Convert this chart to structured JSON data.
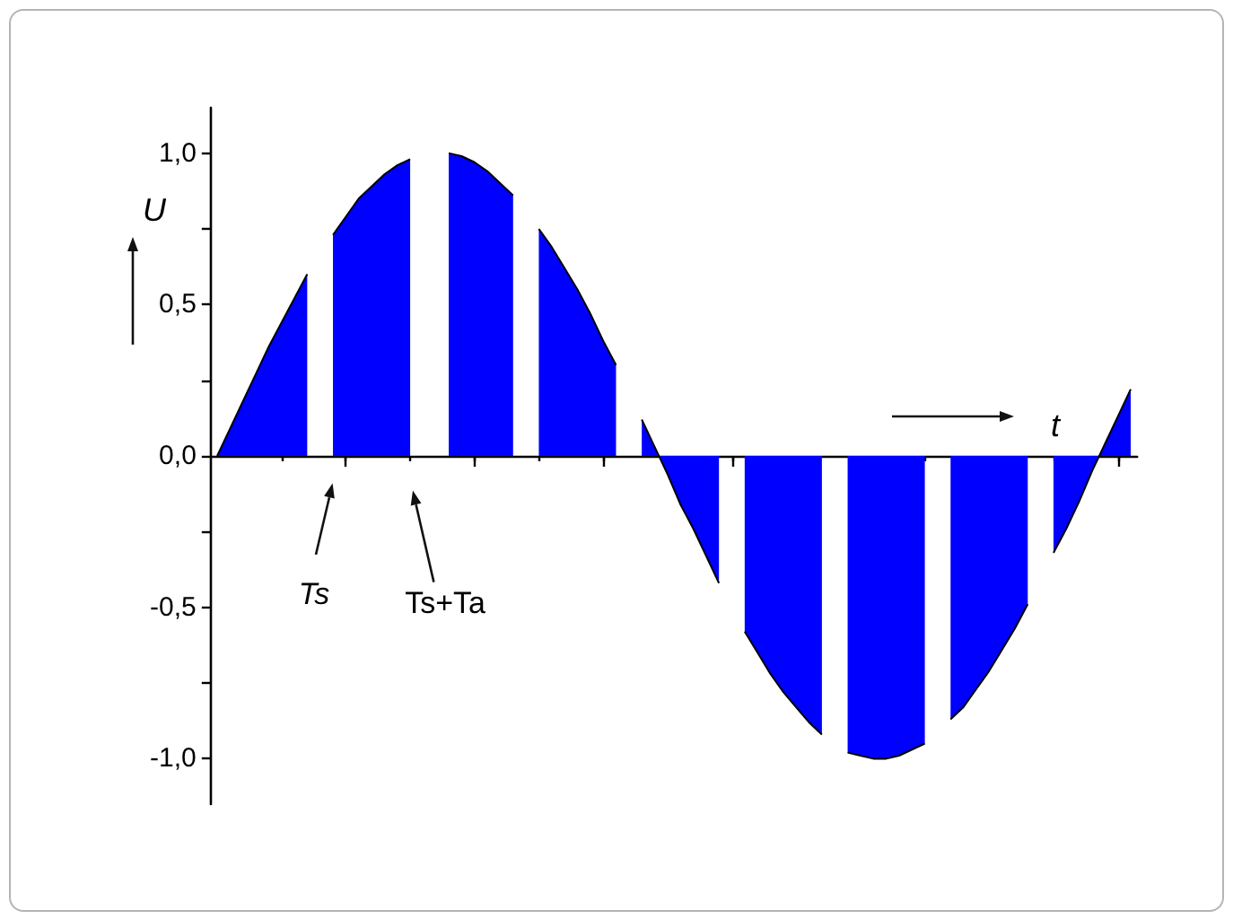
{
  "chart_data": {
    "type": "area",
    "xlabel": "t",
    "ylabel": "U",
    "annotations": [
      "Ts",
      "Ts+Ta"
    ],
    "categories": [
      null,
      null,
      null,
      null,
      null,
      null,
      null,
      null,
      null,
      null,
      null,
      null,
      null,
      null,
      null,
      null,
      null,
      null,
      null,
      null,
      null,
      null,
      null,
      null,
      null,
      null,
      null,
      null,
      null,
      null,
      null,
      null,
      null,
      null,
      null,
      null,
      null,
      null,
      null,
      null,
      null,
      null,
      null,
      null,
      null,
      null,
      null,
      null,
      null,
      null,
      null,
      null,
      null,
      null,
      null,
      null,
      null,
      null,
      null,
      null,
      null,
      null,
      null,
      null,
      null,
      null,
      null,
      null,
      null,
      null,
      null,
      null
    ],
    "values": [
      0,
      0.09,
      0.18,
      0.27,
      0.36,
      0.44,
      0.52,
      0.6,
      null,
      0.73,
      0.79,
      0.85,
      0.89,
      0.93,
      0.96,
      0.98,
      null,
      null,
      1.0,
      0.99,
      0.97,
      0.94,
      0.9,
      0.86,
      null,
      0.75,
      0.69,
      0.62,
      0.55,
      0.47,
      0.38,
      0.3,
      null,
      0.12,
      0.03,
      -0.06,
      -0.16,
      -0.24,
      -0.33,
      -0.42,
      null,
      -0.58,
      -0.65,
      -0.72,
      -0.78,
      -0.83,
      -0.88,
      -0.92,
      null,
      -0.98,
      -0.99,
      -1.0,
      -1.0,
      -0.99,
      -0.97,
      -0.95,
      null,
      -0.87,
      -0.83,
      -0.77,
      -0.71,
      -0.64,
      -0.57,
      -0.49,
      null,
      -0.32,
      -0.24,
      -0.15,
      -0.05,
      0.04,
      0.13,
      0.22
    ],
    "color": "#0000ff",
    "ylim": [
      -1.15,
      1.15
    ],
    "yticks": [
      {
        "value": -1,
        "label": "-1,0"
      },
      {
        "value": -0.75,
        "label": null
      },
      {
        "value": -0.5,
        "label": "-0,5"
      },
      {
        "value": -0.25,
        "label": null
      },
      {
        "value": 0,
        "label": "0,0"
      },
      {
        "value": 0.25,
        "label": null
      },
      {
        "value": 0.5,
        "label": "0,5"
      },
      {
        "value": 0.75,
        "label": null
      },
      {
        "value": 1,
        "label": "1,0"
      }
    ],
    "tick_labels": "y"
  }
}
